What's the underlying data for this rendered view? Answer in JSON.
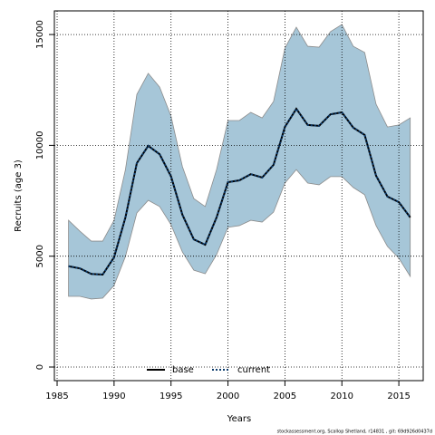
{
  "chart_data": {
    "type": "line",
    "xlabel": "Years",
    "ylabel": "Recruits (age 3)",
    "footer": "stockassessment.org, Scallop Shetland, r14831 , git: 69d926d0437d",
    "x": [
      1986,
      1987,
      1988,
      1989,
      1990,
      1991,
      1992,
      1993,
      1994,
      1995,
      1996,
      1997,
      1998,
      1999,
      2000,
      2001,
      2002,
      2003,
      2004,
      2005,
      2006,
      2007,
      2008,
      2009,
      2010,
      2011,
      2012,
      2013,
      2014,
      2015,
      2016
    ],
    "series": [
      {
        "name": "base",
        "color": "#000000",
        "dash": false,
        "values": [
          4550,
          4450,
          4200,
          4170,
          4950,
          6750,
          9200,
          9980,
          9600,
          8600,
          6870,
          5760,
          5520,
          6750,
          8340,
          8420,
          8700,
          8550,
          9120,
          10830,
          11650,
          10920,
          10880,
          11400,
          11490,
          10800,
          10470,
          8630,
          7690,
          7440,
          6750
        ]
      },
      {
        "name": "current",
        "color": "#0b3a6b",
        "dash": true,
        "values": [
          4550,
          4450,
          4200,
          4170,
          4950,
          6750,
          9200,
          9980,
          9600,
          8600,
          6870,
          5760,
          5520,
          6750,
          8340,
          8420,
          8700,
          8550,
          9120,
          10830,
          11650,
          10920,
          10880,
          11400,
          11490,
          10800,
          10470,
          8630,
          7690,
          7440,
          6750
        ]
      }
    ],
    "band": {
      "color": "#a6c6d8",
      "edge": "#8c8c8c",
      "upper": [
        6620,
        6130,
        5680,
        5680,
        6620,
        8910,
        12300,
        13250,
        12630,
        11320,
        9040,
        7600,
        7240,
        8910,
        11120,
        11120,
        11490,
        11240,
        11980,
        14390,
        15330,
        14470,
        14430,
        15130,
        15450,
        14470,
        14190,
        11860,
        10830,
        10920,
        11240
      ],
      "lower": [
        3190,
        3190,
        3070,
        3110,
        3680,
        4990,
        6950,
        7520,
        7240,
        6420,
        5190,
        4370,
        4210,
        5070,
        6300,
        6380,
        6620,
        6540,
        6990,
        8300,
        8910,
        8300,
        8220,
        8590,
        8590,
        8100,
        7770,
        6380,
        5440,
        4910,
        4090
      ]
    },
    "xlim": [
      1984.76,
      2017.14
    ],
    "ylim": [
      -613,
      16067
    ],
    "xticks": [
      1985,
      1990,
      1995,
      2000,
      2005,
      2010,
      2015
    ],
    "yticks": [
      0,
      5000,
      10000,
      15000
    ],
    "grid": true,
    "legend": "bottom"
  }
}
